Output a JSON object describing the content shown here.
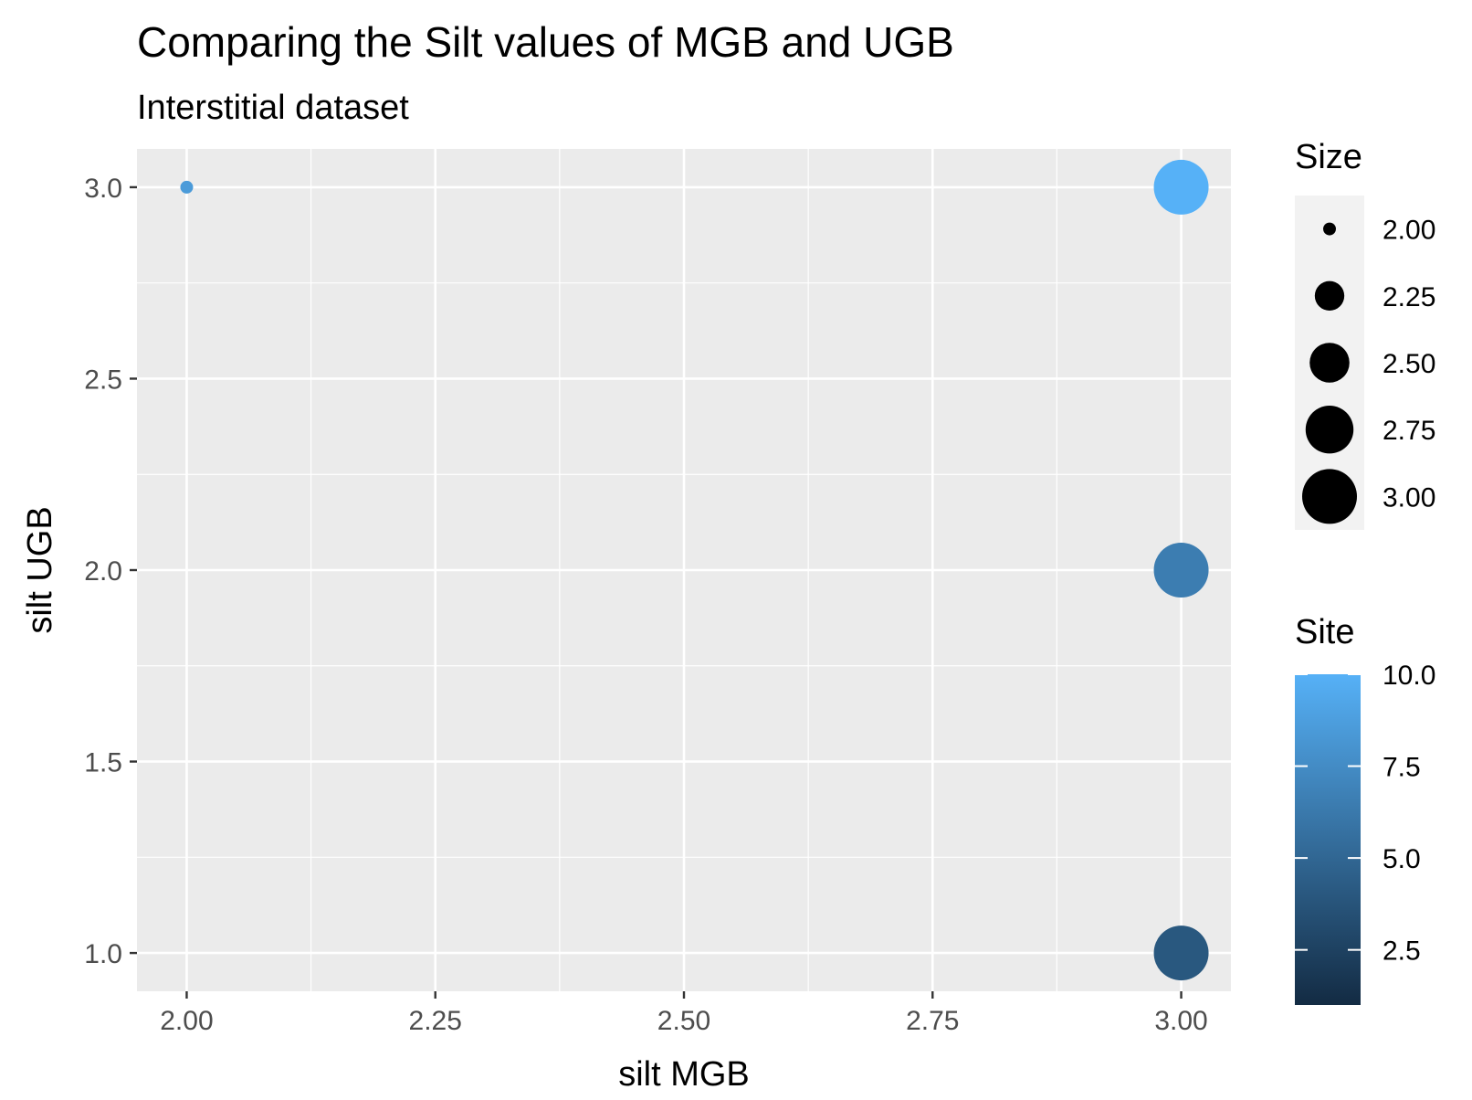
{
  "chart_data": {
    "type": "scatter",
    "title": "Comparing the Silt values of MGB and UGB",
    "subtitle": "Interstitial dataset",
    "xlabel": "silt MGB",
    "ylabel": "silt UGB",
    "xlim": [
      1.95,
      3.05
    ],
    "ylim": [
      0.9,
      3.1
    ],
    "x_ticks": [
      2.0,
      2.25,
      2.5,
      2.75,
      3.0
    ],
    "x_tick_labels": [
      "2.00",
      "2.25",
      "2.50",
      "2.75",
      "3.00"
    ],
    "y_ticks": [
      1.0,
      1.5,
      2.0,
      2.5,
      3.0
    ],
    "y_tick_labels": [
      "1.0",
      "1.5",
      "2.0",
      "2.5",
      "3.0"
    ],
    "grid": true,
    "points": [
      {
        "x": 2.0,
        "y": 3.0,
        "size": 2.0,
        "site": 8.5
      },
      {
        "x": 3.0,
        "y": 3.0,
        "size": 3.0,
        "site": 10.0
      },
      {
        "x": 3.0,
        "y": 2.0,
        "size": 3.0,
        "site": 6.5
      },
      {
        "x": 3.0,
        "y": 1.0,
        "size": 3.0,
        "site": 4.0
      }
    ],
    "size_legend": {
      "title": "Size",
      "values": [
        2.0,
        2.25,
        2.5,
        2.75,
        3.0
      ],
      "labels": [
        "2.00",
        "2.25",
        "2.50",
        "2.75",
        "3.00"
      ]
    },
    "color_legend": {
      "title": "Site",
      "range": [
        1.0,
        10.0
      ],
      "ticks": [
        2.5,
        5.0,
        7.5,
        10.0
      ],
      "labels": [
        "2.5",
        "5.0",
        "7.5",
        "10.0"
      ],
      "low_color": "#132B43",
      "high_color": "#56B1F7"
    },
    "legend_placement": "right"
  }
}
